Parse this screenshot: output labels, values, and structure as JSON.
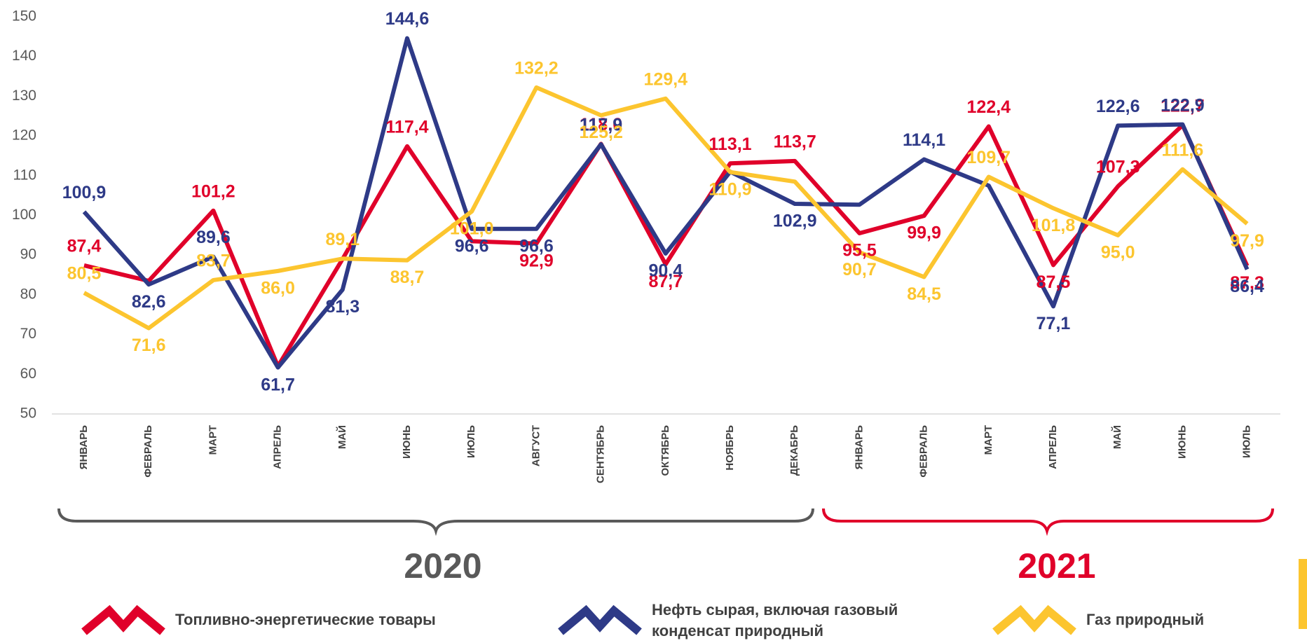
{
  "chart_data": {
    "type": "line",
    "categories": [
      "ЯНВАРЬ",
      "ФЕВРАЛЬ",
      "МАРТ",
      "АПРЕЛЬ",
      "МАЙ",
      "ИЮНЬ",
      "ИЮЛЬ",
      "АВГУСТ",
      "СЕНТЯБРЬ",
      "ОКТЯБРЬ",
      "НОЯБРЬ",
      "ДЕКАБРЬ",
      "ЯНВАРЬ",
      "ФЕВРАЛЬ",
      "МАРТ",
      "АПРЕЛЬ",
      "МАЙ",
      "ИЮНЬ",
      "ИЮЛЬ"
    ],
    "ylim": [
      50,
      150
    ],
    "yticks": [
      50,
      60,
      70,
      80,
      90,
      100,
      110,
      120,
      130,
      140,
      150
    ],
    "year_labels": [
      "2020",
      "2021"
    ],
    "series": [
      {
        "name": "Топливно-энергетические товары",
        "color": "#e0002a",
        "values": [
          87.4,
          83.5,
          101.2,
          62,
          89,
          117.4,
          93.5,
          92.9,
          118.0,
          87.7,
          113.1,
          113.7,
          95.5,
          99.9,
          122.4,
          87.5,
          107.3,
          122.7,
          87.3
        ],
        "value_labels": [
          "87,4",
          null,
          "101,2",
          null,
          null,
          "117,4",
          null,
          "92,9",
          "118,0",
          "87,7",
          "113,1",
          "113,7",
          "95,5",
          "99,9",
          "122,4",
          "87,5",
          "107,3",
          "122,7",
          "87,3"
        ]
      },
      {
        "name": "Нефть сырая, включая газовый конденсат природный",
        "color": "#2e3a87",
        "values": [
          100.9,
          82.6,
          89.6,
          61.7,
          81.3,
          144.6,
          96.6,
          96.6,
          117.9,
          90.4,
          111,
          102.9,
          102.7,
          114.1,
          107.5,
          77.1,
          122.6,
          122.9,
          86.4
        ],
        "value_labels": [
          "100,9",
          "82,6",
          "89,6",
          "61,7",
          "81,3",
          "144,6",
          "96,6",
          "96,6",
          "117,9",
          "90,4",
          null,
          "102,9",
          null,
          "114,1",
          null,
          "77,1",
          "122,6",
          "122,9",
          "86,4"
        ]
      },
      {
        "name": "Газ природный",
        "color": "#fcc52f",
        "values": [
          80.5,
          71.6,
          83.7,
          86.0,
          89.1,
          88.7,
          101.0,
          132.2,
          125.2,
          129.4,
          110.9,
          108.5,
          90.7,
          84.5,
          109.7,
          101.8,
          95.0,
          111.6,
          97.9
        ],
        "value_labels": [
          "80,5",
          "71,6",
          "83,7",
          "86,0",
          "89,1",
          "88,7",
          "101,0",
          "132,2",
          "125,2",
          "129,4",
          "110,9",
          null,
          "90,7",
          "84,5",
          "109,7",
          "101,8",
          "95,0",
          "111,6",
          "97,9"
        ]
      }
    ]
  }
}
